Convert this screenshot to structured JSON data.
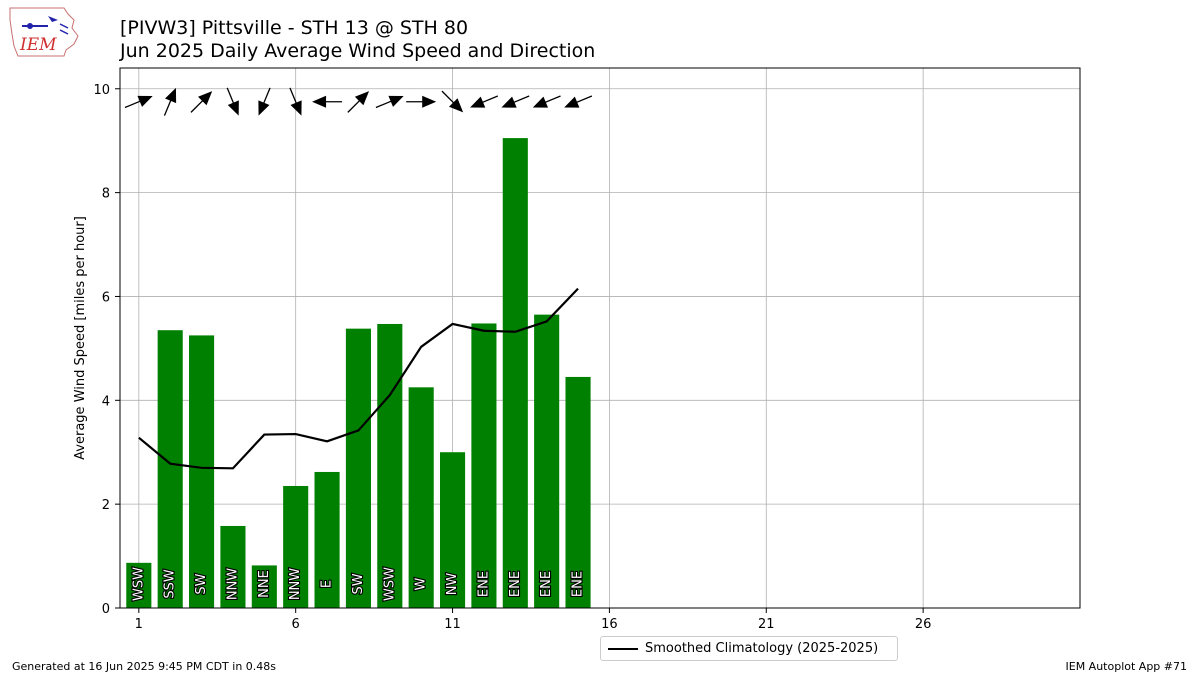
{
  "header": {
    "title_line1": "[PIVW3] Pittsville - STH 13 @ STH 80",
    "title_line2": "Jun 2025 Daily Average Wind Speed and Direction",
    "logo_text": "IEM"
  },
  "footer": {
    "generated": "Generated at 16 Jun 2025 9:45 PM CDT in 0.48s",
    "app": "IEM Autoplot App #71"
  },
  "legend": {
    "label": "Smoothed Climatology (2025-2025)"
  },
  "colors": {
    "bars": "#008000",
    "line": "#000000",
    "grid": "#b0b0b0",
    "arrows": "#000000"
  },
  "chart_data": {
    "type": "bar",
    "ylabel": "Average Wind Speed [miles per hour]",
    "xlabel": "",
    "xlim": [
      0.4,
      31
    ],
    "ylim": [
      0,
      10.4
    ],
    "xticks": [
      1,
      6,
      11,
      16,
      21,
      26
    ],
    "yticks": [
      0,
      2,
      4,
      6,
      8,
      10
    ],
    "grid": true,
    "legend_position": "bottom-center",
    "days": [
      1,
      2,
      3,
      4,
      5,
      6,
      7,
      8,
      9,
      10,
      11,
      12,
      13,
      14,
      15
    ],
    "wind_speed": [
      0.87,
      5.35,
      5.25,
      1.58,
      0.82,
      2.35,
      2.62,
      5.38,
      5.47,
      4.25,
      3.0,
      5.48,
      9.05,
      5.65,
      4.45
    ],
    "direction_labels": [
      "WSW",
      "SSW",
      "SW",
      "NNW",
      "NNE",
      "NNW",
      "E",
      "SW",
      "WSW",
      "W",
      "NW",
      "ENE",
      "ENE",
      "ENE",
      "ENE"
    ],
    "direction_degrees": [
      247.5,
      202.5,
      225,
      337.5,
      22.5,
      337.5,
      90,
      225,
      247.5,
      270,
      315,
      67.5,
      67.5,
      67.5,
      67.5
    ],
    "series": [
      {
        "name": "Smoothed Climatology (2025-2025)",
        "type": "line",
        "x": [
          1,
          2,
          3,
          4,
          5,
          6,
          7,
          8,
          9,
          10,
          11,
          12,
          13,
          14,
          15
        ],
        "values": [
          3.28,
          2.78,
          2.7,
          2.69,
          3.34,
          3.35,
          3.21,
          3.42,
          4.1,
          5.03,
          5.47,
          5.34,
          5.32,
          5.52,
          6.15
        ]
      }
    ]
  }
}
